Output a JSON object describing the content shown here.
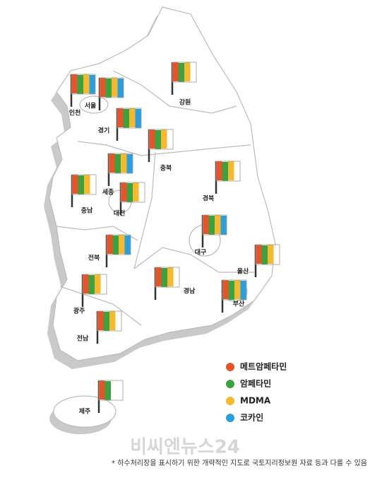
{
  "drugs": [
    {
      "label": "메트암페타민",
      "color": "#e8542a"
    },
    {
      "label": "암페타민",
      "color": "#3aa33f"
    },
    {
      "label": "MDMA",
      "color": "#f6b92e"
    },
    {
      "label": "코카인",
      "color": "#2a9fe0"
    }
  ],
  "regions": [
    {
      "label": "인천",
      "drugs": [
        true,
        true,
        true,
        true
      ]
    },
    {
      "label": "서울",
      "drugs": [
        true,
        true,
        true,
        true
      ]
    },
    {
      "label": "강원",
      "drugs": [
        true,
        true,
        true,
        false
      ]
    },
    {
      "label": "경기",
      "drugs": [
        true,
        true,
        true,
        true
      ]
    },
    {
      "label": "충북",
      "drugs": [
        true,
        true,
        true,
        false
      ]
    },
    {
      "label": "세종",
      "drugs": [
        true,
        true,
        true,
        true
      ]
    },
    {
      "label": "충남",
      "drugs": [
        true,
        true,
        true,
        false
      ]
    },
    {
      "label": "대전",
      "drugs": [
        true,
        true,
        true,
        false
      ]
    },
    {
      "label": "경북",
      "drugs": [
        true,
        true,
        true,
        false
      ]
    },
    {
      "label": "대구",
      "drugs": [
        true,
        true,
        true,
        true
      ]
    },
    {
      "label": "전북",
      "drugs": [
        true,
        true,
        true,
        true
      ]
    },
    {
      "label": "울산",
      "drugs": [
        true,
        true,
        true,
        false
      ]
    },
    {
      "label": "광주",
      "drugs": [
        true,
        true,
        true,
        false
      ]
    },
    {
      "label": "경남",
      "drugs": [
        true,
        true,
        true,
        false
      ]
    },
    {
      "label": "부산",
      "drugs": [
        true,
        true,
        true,
        true
      ]
    },
    {
      "label": "전남",
      "drugs": [
        true,
        true,
        true,
        false
      ]
    },
    {
      "label": "제주",
      "drugs": [
        true,
        true,
        false,
        false
      ]
    }
  ],
  "watermark": "비씨엔뉴스24",
  "footnote": "* 하수처리장을 표시하기 위한 개략적인 지도로 국토지리정보원 자료 등과 다를 수 있음"
}
